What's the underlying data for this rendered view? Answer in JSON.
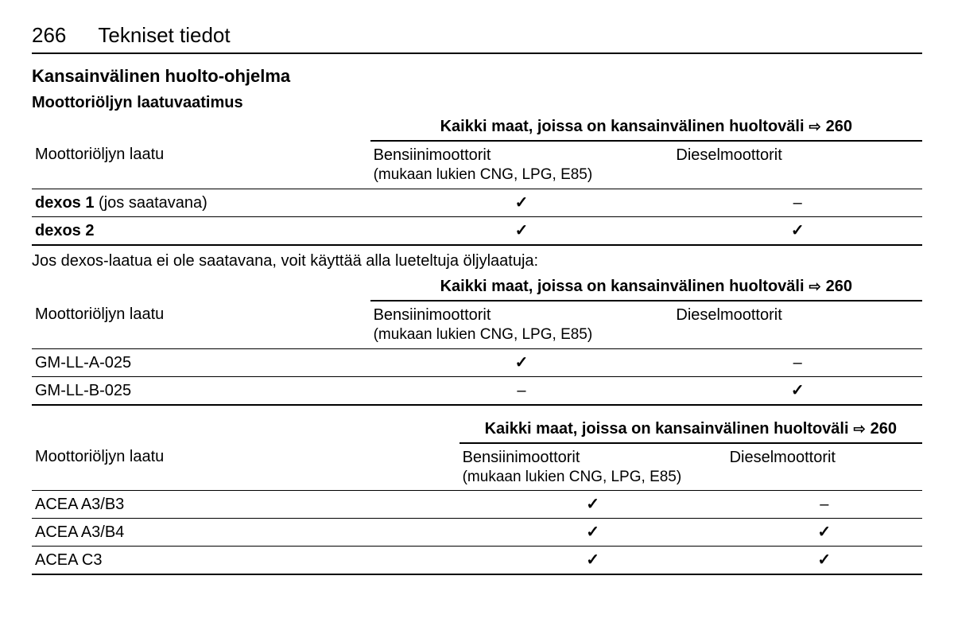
{
  "colors": {
    "text": "#000000",
    "background": "#ffffff",
    "rule_heavy": "#000000",
    "rule_light": "#000000"
  },
  "typography": {
    "base_font": "Arial, Helvetica, sans-serif",
    "page_number_size_pt": 20,
    "chapter_title_size_pt": 20,
    "section_title_size_pt": 16,
    "body_size_pt": 15
  },
  "glyphs": {
    "check": "✓",
    "dash": "–",
    "page_ref_arrow": "⇨"
  },
  "header": {
    "page_number": "266",
    "chapter": "Tekniset tiedot"
  },
  "section": {
    "title": "Kansainvälinen huolto-ohjelma",
    "subsection": "Moottoriöljyn laatuvaatimus"
  },
  "caption": {
    "text": "Kaikki maat, joissa on kansainvälinen huoltoväli",
    "ref": "260"
  },
  "col_labels": {
    "quality": "Moottoriöljyn laatu",
    "petrol": "Bensiinimoottorit",
    "petrol_sub": "(mukaan lukien CNG, LPG, E85)",
    "diesel": "Dieselmoottorit"
  },
  "tables": [
    {
      "id": "dexos",
      "layout": "t12",
      "rows": [
        {
          "label_bold": "dexos 1",
          "label_tail": " (jos saatavana)",
          "petrol": "check",
          "diesel": "dash"
        },
        {
          "label_bold": "dexos 2",
          "label_tail": "",
          "petrol": "check",
          "diesel": "check"
        }
      ]
    },
    {
      "id": "gm",
      "layout": "t12",
      "note_before": "Jos dexos-laatua ei ole saatavana, voit käyttää alla lueteltuja öljylaatuja:",
      "rows": [
        {
          "label": "GM-LL-A-025",
          "petrol": "check",
          "diesel": "dash"
        },
        {
          "label": "GM-LL-B-025",
          "petrol": "dash",
          "diesel": "check"
        }
      ]
    },
    {
      "id": "acea",
      "layout": "t3",
      "rows": [
        {
          "label": "ACEA A3/B3",
          "petrol": "check",
          "diesel": "dash"
        },
        {
          "label": "ACEA A3/B4",
          "petrol": "check",
          "diesel": "check"
        },
        {
          "label": "ACEA C3",
          "petrol": "check",
          "diesel": "check"
        }
      ]
    }
  ]
}
